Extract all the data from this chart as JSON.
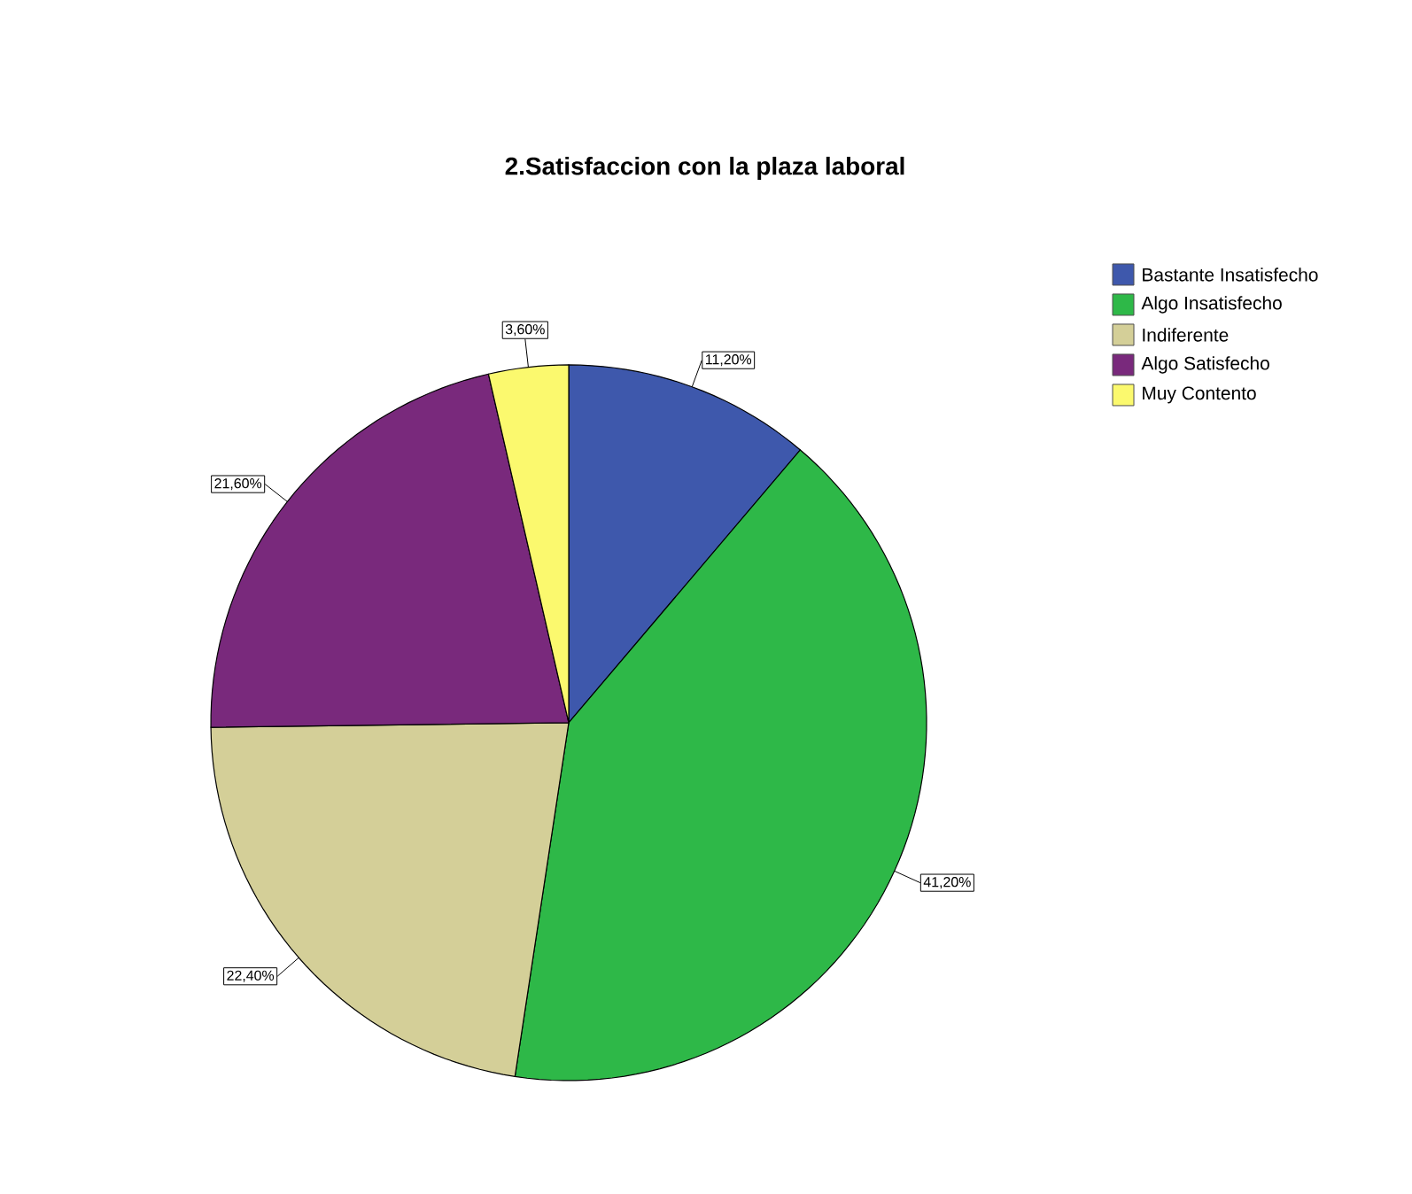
{
  "chart_data": {
    "type": "pie",
    "title": "2.Satisfaccion con la plaza laboral",
    "categories": [
      "Bastante Insatisfecho",
      "Algo Insatisfecho",
      "Indiferente",
      "Algo Satisfecho",
      "Muy Contento"
    ],
    "values": [
      11.2,
      41.2,
      22.4,
      21.6,
      3.6
    ],
    "value_labels": [
      "11,20%",
      "41,20%",
      "22,40%",
      "21,60%",
      "3,60%"
    ],
    "colors": [
      "#3e58ac",
      "#2eb848",
      "#d4cf98",
      "#79297c",
      "#fbf96e"
    ],
    "legend": "top right"
  }
}
